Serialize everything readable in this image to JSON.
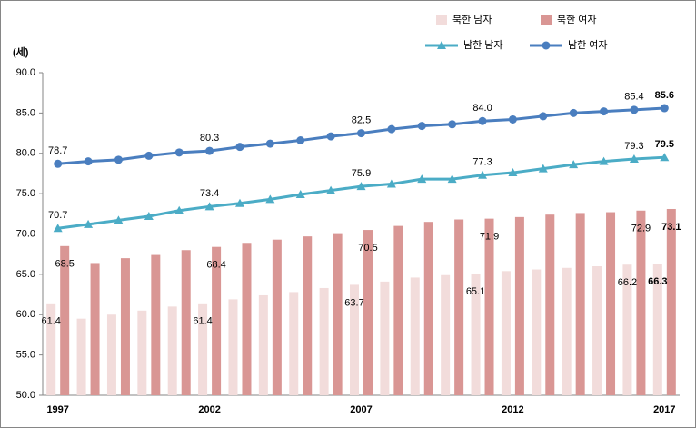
{
  "chart_data": {
    "type": "bar-line",
    "y_label": "(세)",
    "categories": [
      "1997",
      null,
      null,
      null,
      null,
      "2002",
      null,
      null,
      null,
      null,
      "2007",
      null,
      null,
      null,
      null,
      "2012",
      null,
      null,
      null,
      null,
      "2017"
    ],
    "series": [
      {
        "name": "북한 남자",
        "kind": "bar",
        "color": "#f2dcdb",
        "values": [
          61.4,
          59.5,
          60.0,
          60.5,
          61.0,
          61.4,
          61.9,
          62.4,
          62.8,
          63.3,
          63.7,
          64.1,
          64.6,
          64.9,
          65.1,
          65.4,
          65.6,
          65.8,
          66.0,
          66.2,
          66.3
        ],
        "value_labels": [
          "61.4",
          null,
          null,
          null,
          null,
          "61.4",
          null,
          null,
          null,
          null,
          "63.7",
          null,
          null,
          null,
          "65.1",
          null,
          null,
          null,
          null,
          "66.2",
          "66.3"
        ]
      },
      {
        "name": "북한 여자",
        "kind": "bar",
        "color": "#d99694",
        "values": [
          68.5,
          66.4,
          67.0,
          67.4,
          68.0,
          68.4,
          68.9,
          69.3,
          69.7,
          70.1,
          70.5,
          71.0,
          71.5,
          71.8,
          71.9,
          72.1,
          72.4,
          72.6,
          72.7,
          72.9,
          73.1
        ],
        "value_labels": [
          "68.5",
          null,
          null,
          null,
          null,
          "68.4",
          null,
          null,
          null,
          null,
          "70.5",
          null,
          null,
          null,
          "71.9",
          null,
          null,
          null,
          null,
          "72.9",
          "73.1"
        ]
      },
      {
        "name": "남한 남자",
        "kind": "line",
        "marker": "triangle",
        "color": "#4bacc6",
        "values": [
          70.7,
          71.2,
          71.7,
          72.2,
          72.9,
          73.4,
          73.8,
          74.3,
          74.9,
          75.4,
          75.9,
          76.2,
          76.8,
          76.8,
          77.3,
          77.6,
          78.1,
          78.6,
          79.0,
          79.3,
          79.5
        ],
        "value_labels": [
          "70.7",
          null,
          null,
          null,
          null,
          "73.4",
          null,
          null,
          null,
          null,
          "75.9",
          null,
          null,
          null,
          "77.3",
          null,
          null,
          null,
          null,
          "79.3",
          "79.5"
        ]
      },
      {
        "name": "남한 여자",
        "kind": "line",
        "marker": "circle",
        "color": "#4a7ebf",
        "values": [
          78.7,
          79.0,
          79.2,
          79.7,
          80.1,
          80.3,
          80.8,
          81.2,
          81.6,
          82.1,
          82.5,
          83.0,
          83.4,
          83.6,
          84.0,
          84.2,
          84.6,
          85.0,
          85.2,
          85.4,
          85.6
        ],
        "value_labels": [
          "78.7",
          null,
          null,
          null,
          null,
          "80.3",
          null,
          null,
          null,
          null,
          "82.5",
          null,
          null,
          null,
          "84.0",
          null,
          null,
          null,
          null,
          "85.4",
          "85.6"
        ]
      }
    ],
    "ylim": [
      50,
      90
    ],
    "yticks": [
      {
        "value": 50,
        "label": "50.0"
      },
      {
        "value": 55,
        "label": "55.0"
      },
      {
        "value": 60,
        "label": "60.0"
      },
      {
        "value": 65,
        "label": "65.0"
      },
      {
        "value": 70,
        "label": "70.0"
      },
      {
        "value": 75,
        "label": "75.0"
      },
      {
        "value": 80,
        "label": "80.0"
      },
      {
        "value": 85,
        "label": "85.0"
      },
      {
        "value": 90,
        "label": "90.0"
      }
    ],
    "grid": false
  }
}
